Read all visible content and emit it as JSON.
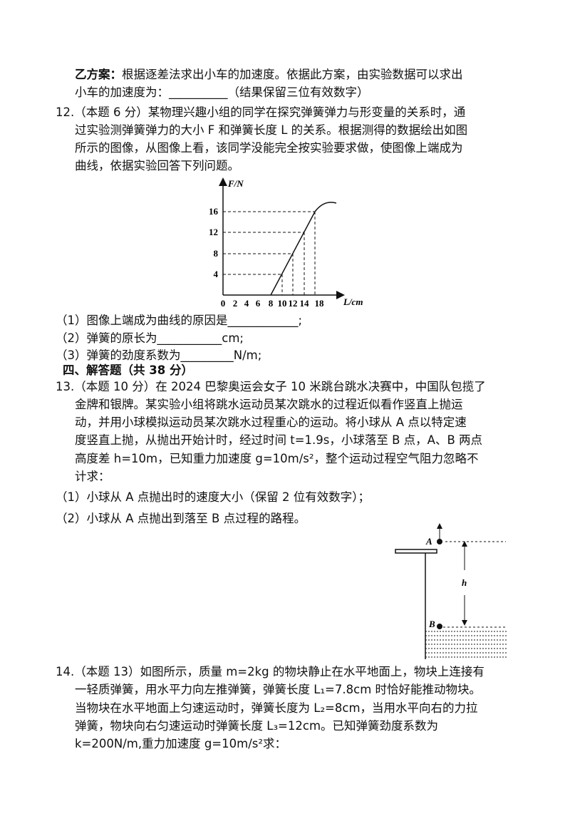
{
  "q11": {
    "plan_label": "乙方案：",
    "lines": [
      "根据逐差法求出小车的加速度。依据此方案，由实验数据可以求出",
      "小车的加速度为：__________（结果保留三位有效数字）"
    ]
  },
  "q12": {
    "lines": [
      "12.（本题 6 分）某物理兴趣小组的同学在探究弹簧弹力与形变量的关系时，通",
      "过实验测弹簧弹力的大小 F 和弹簧长度 L 的关系。根据测得的数据绘出如图",
      "所示的图像，从图像上看，该同学没能完全按实验要求做，使图像上端成为",
      "曲线，依据实验回答下列问题。"
    ],
    "graph": {
      "y_label": "F/N",
      "x_label": "L/cm",
      "yticks": [
        "16",
        "12",
        "8",
        "4"
      ],
      "xticks": [
        "0",
        "2",
        "4",
        "6",
        "8",
        "10",
        "12",
        "14",
        "18"
      ]
    },
    "questions": [
      "（1）图像上端成为曲线的原因是____________;",
      "（2）弹簧的原长为___________cm;",
      "（3）弹簧的劲度系数为_________N/m;"
    ]
  },
  "section": "四、解答题（共 38 分）",
  "q13": {
    "lines": [
      "13.（本题 10 分）在 2024 巴黎奥运会女子 10 米跳台跳水决赛中，中国队包揽了",
      "金牌和银牌。某实验小组将跳水运动员某次跳水的过程近似看作竖直上抛运",
      "动，并用小球模拟运动员某次跳水过程重心的运动。将小球从 A 点以特定速",
      "度竖直上抛，从抛出开始计时，经过时间 t=1.9s，小球落至 B 点，A、B 两点",
      "高度差 h=10m，已知重力加速度 g=10m/s²，整个运动过程空气阻力忽略不",
      "计求："
    ],
    "questions": [
      "（1）小球从 A 点抛出时的速度大小（保留 2 位有效数字）；",
      "（2）小球从 A 点抛出到落至 B 点过程的路程。"
    ],
    "figure": {
      "label_a": "A",
      "label_b": "B",
      "label_h": "h"
    }
  },
  "q14": {
    "lines": [
      "14.（本题 13）如图所示，质量 m=2kg 的物块静止在水平地面上，物块上连接有",
      "一轻质弹簧，用水平力向左推弹簧，弹簧长度 L₁=7.8cm 时恰好能推动物块。",
      "当物块在水平地面上匀速运动时，弹簧长度为 L₂=8cm，当用水平向右的力拉",
      "弹簧，物块向右匀速运动时弹簧长度 L₃=12cm。已知弹簧劲度系数为",
      "k=200N/m,重力加速度 g=10m/s²求："
    ]
  }
}
